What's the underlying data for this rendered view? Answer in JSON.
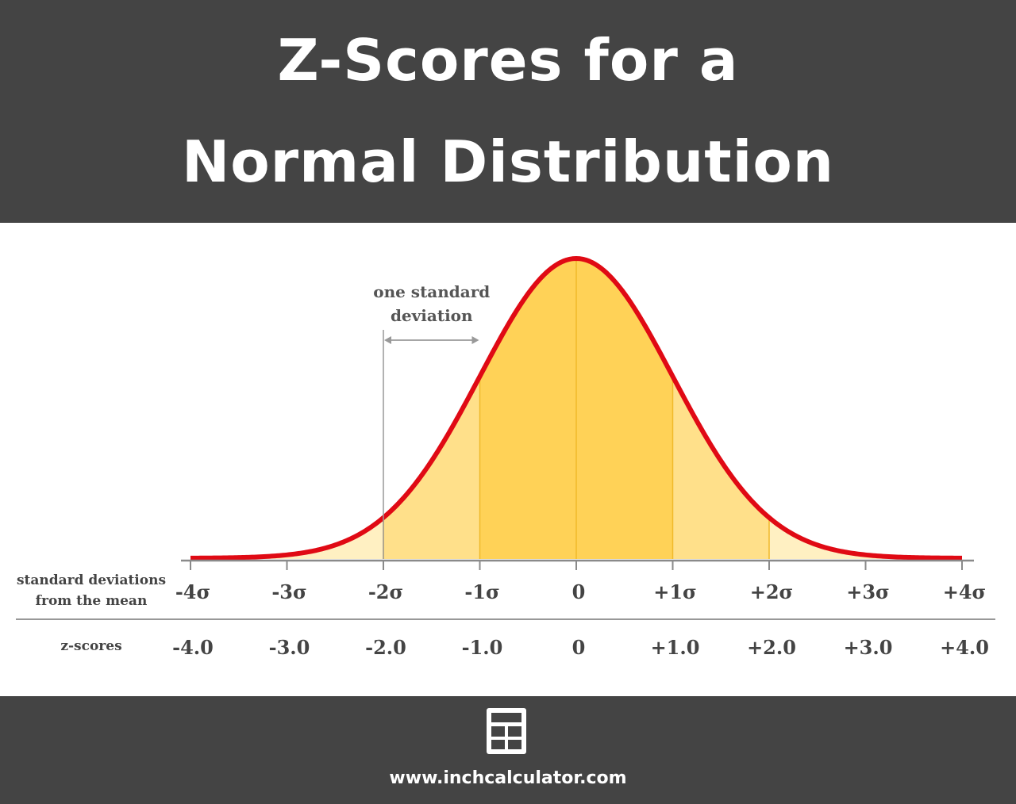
{
  "header": {
    "title_line1": "Z-Scores for a",
    "title_line2": "Normal Distribution",
    "background": "#444444"
  },
  "chart_data": {
    "type": "area",
    "x": [
      -4,
      -3,
      -2,
      -1,
      0,
      1,
      2,
      3,
      4
    ],
    "xlim": [
      -4,
      4
    ],
    "curve": "standard normal density",
    "shading": [
      {
        "from": -1,
        "to": 1,
        "color": "#ffd257"
      },
      {
        "from": -2,
        "to": -1,
        "color": "#ffe08a"
      },
      {
        "from": 1,
        "to": 2,
        "color": "#ffe08a"
      },
      {
        "from": -4,
        "to": -2,
        "color": "#fff0c2"
      },
      {
        "from": 2,
        "to": 4,
        "color": "#fff0c2"
      }
    ],
    "curve_color": "#e00a14",
    "annotation": {
      "line1": "one standard",
      "line2": "deviation",
      "from": -2,
      "to": -1
    },
    "rows": {
      "sd_label_line1": "standard deviations",
      "sd_label_line2": "from the mean",
      "sd_ticks": [
        "-4σ",
        "-3σ",
        "-2σ",
        "-1σ",
        "0",
        "+1σ",
        "+2σ",
        "+3σ",
        "+4σ"
      ],
      "z_label": "z-scores",
      "z_ticks": [
        "-4.0",
        "-3.0",
        "-2.0",
        "-1.0",
        "0",
        "+1.0",
        "+2.0",
        "+3.0",
        "+4.0"
      ]
    }
  },
  "footer": {
    "icon": "calculator-icon",
    "url": "www.inchcalculator.com"
  }
}
